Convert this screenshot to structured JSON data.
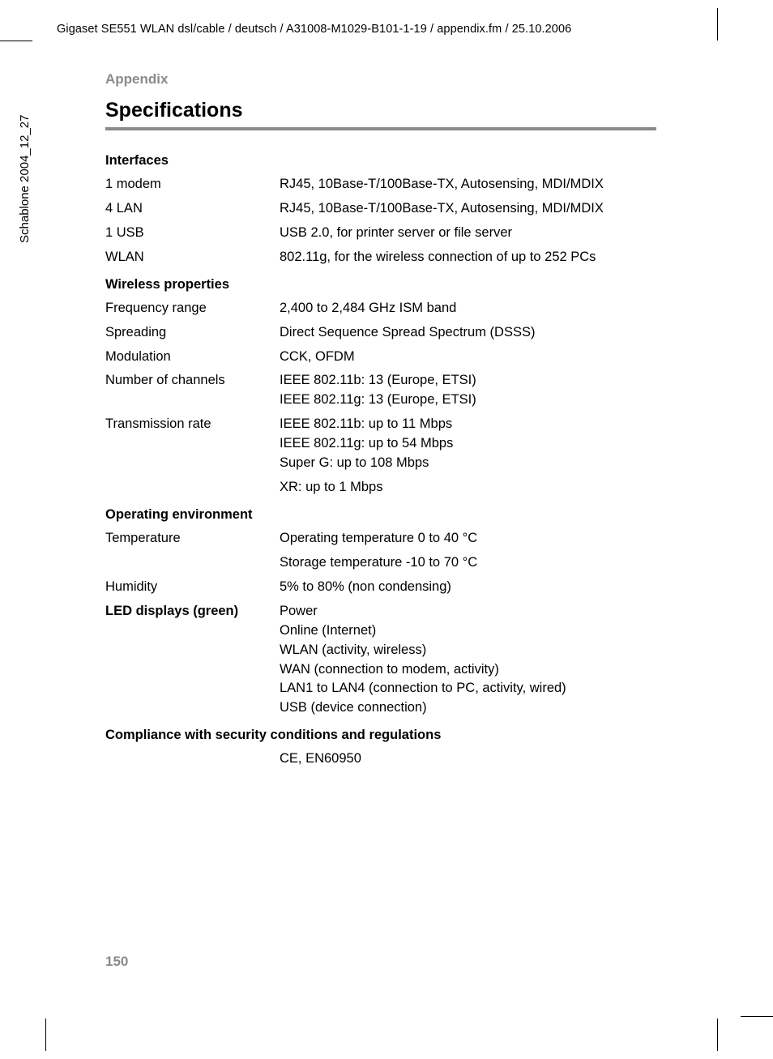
{
  "header_path": "Gigaset SE551 WLAN dsl/cable / deutsch / A31008-M1029-B101-1-19 / appendix.fm / 25.10.2006",
  "side_text": "Schablone 2004_12_27",
  "appendix_label": "Appendix",
  "title": "Specifications",
  "page_number": "150",
  "sections": [
    {
      "heading": "Interfaces",
      "rows": [
        {
          "label": "1 modem",
          "value": [
            "RJ45, 10Base-T/100Base-TX, Autosensing, MDI/MDIX"
          ]
        },
        {
          "label": "4 LAN",
          "value": [
            "RJ45, 10Base-T/100Base-TX, Autosensing, MDI/MDIX"
          ]
        },
        {
          "label": "1 USB",
          "value": [
            "USB 2.0, for printer server or file server"
          ]
        },
        {
          "label": "WLAN",
          "value": [
            "802.11g, for the wireless connection of up to 252 PCs"
          ]
        }
      ]
    },
    {
      "heading": "Wireless properties",
      "rows": [
        {
          "label": "Frequency range",
          "value": [
            "2,400 to 2,484 GHz ISM band"
          ]
        },
        {
          "label": "Spreading",
          "value": [
            "Direct Sequence Spread Spectrum (DSSS)"
          ]
        },
        {
          "label": "Modulation",
          "value": [
            "CCK, OFDM"
          ]
        },
        {
          "label": "Number of channels",
          "value": [
            "IEEE 802.11b: 13 (Europe, ETSI)",
            "IEEE 802.11g: 13 (Europe, ETSI)"
          ]
        },
        {
          "label": "Transmission rate",
          "value": [
            "IEEE 802.11b: up to 11 Mbps",
            "IEEE 802.11g: up to 54 Mbps",
            "Super G: up to 108 Mbps"
          ]
        },
        {
          "label": "",
          "value": [
            "XR: up to 1 Mbps"
          ]
        }
      ]
    },
    {
      "heading": "Operating environment",
      "rows": [
        {
          "label": "Temperature",
          "value": [
            "Operating temperature 0 to 40 °C"
          ]
        },
        {
          "label": "",
          "value": [
            "Storage temperature -10 to 70 °C"
          ]
        },
        {
          "label": "Humidity",
          "value": [
            "5% to 80% (non condensing)"
          ]
        },
        {
          "label": "LED displays (green)",
          "label_bold": true,
          "value": [
            "Power",
            "Online (Internet)",
            "WLAN (activity, wireless)",
            "WAN (connection to modem, activity)",
            "LAN1 to LAN4 (connection to PC, activity, wired)",
            "USB (device connection)"
          ]
        }
      ]
    },
    {
      "heading": "Compliance with security conditions and regulations",
      "rows": [
        {
          "label": "",
          "value": [
            "CE, EN60950"
          ]
        }
      ]
    }
  ]
}
